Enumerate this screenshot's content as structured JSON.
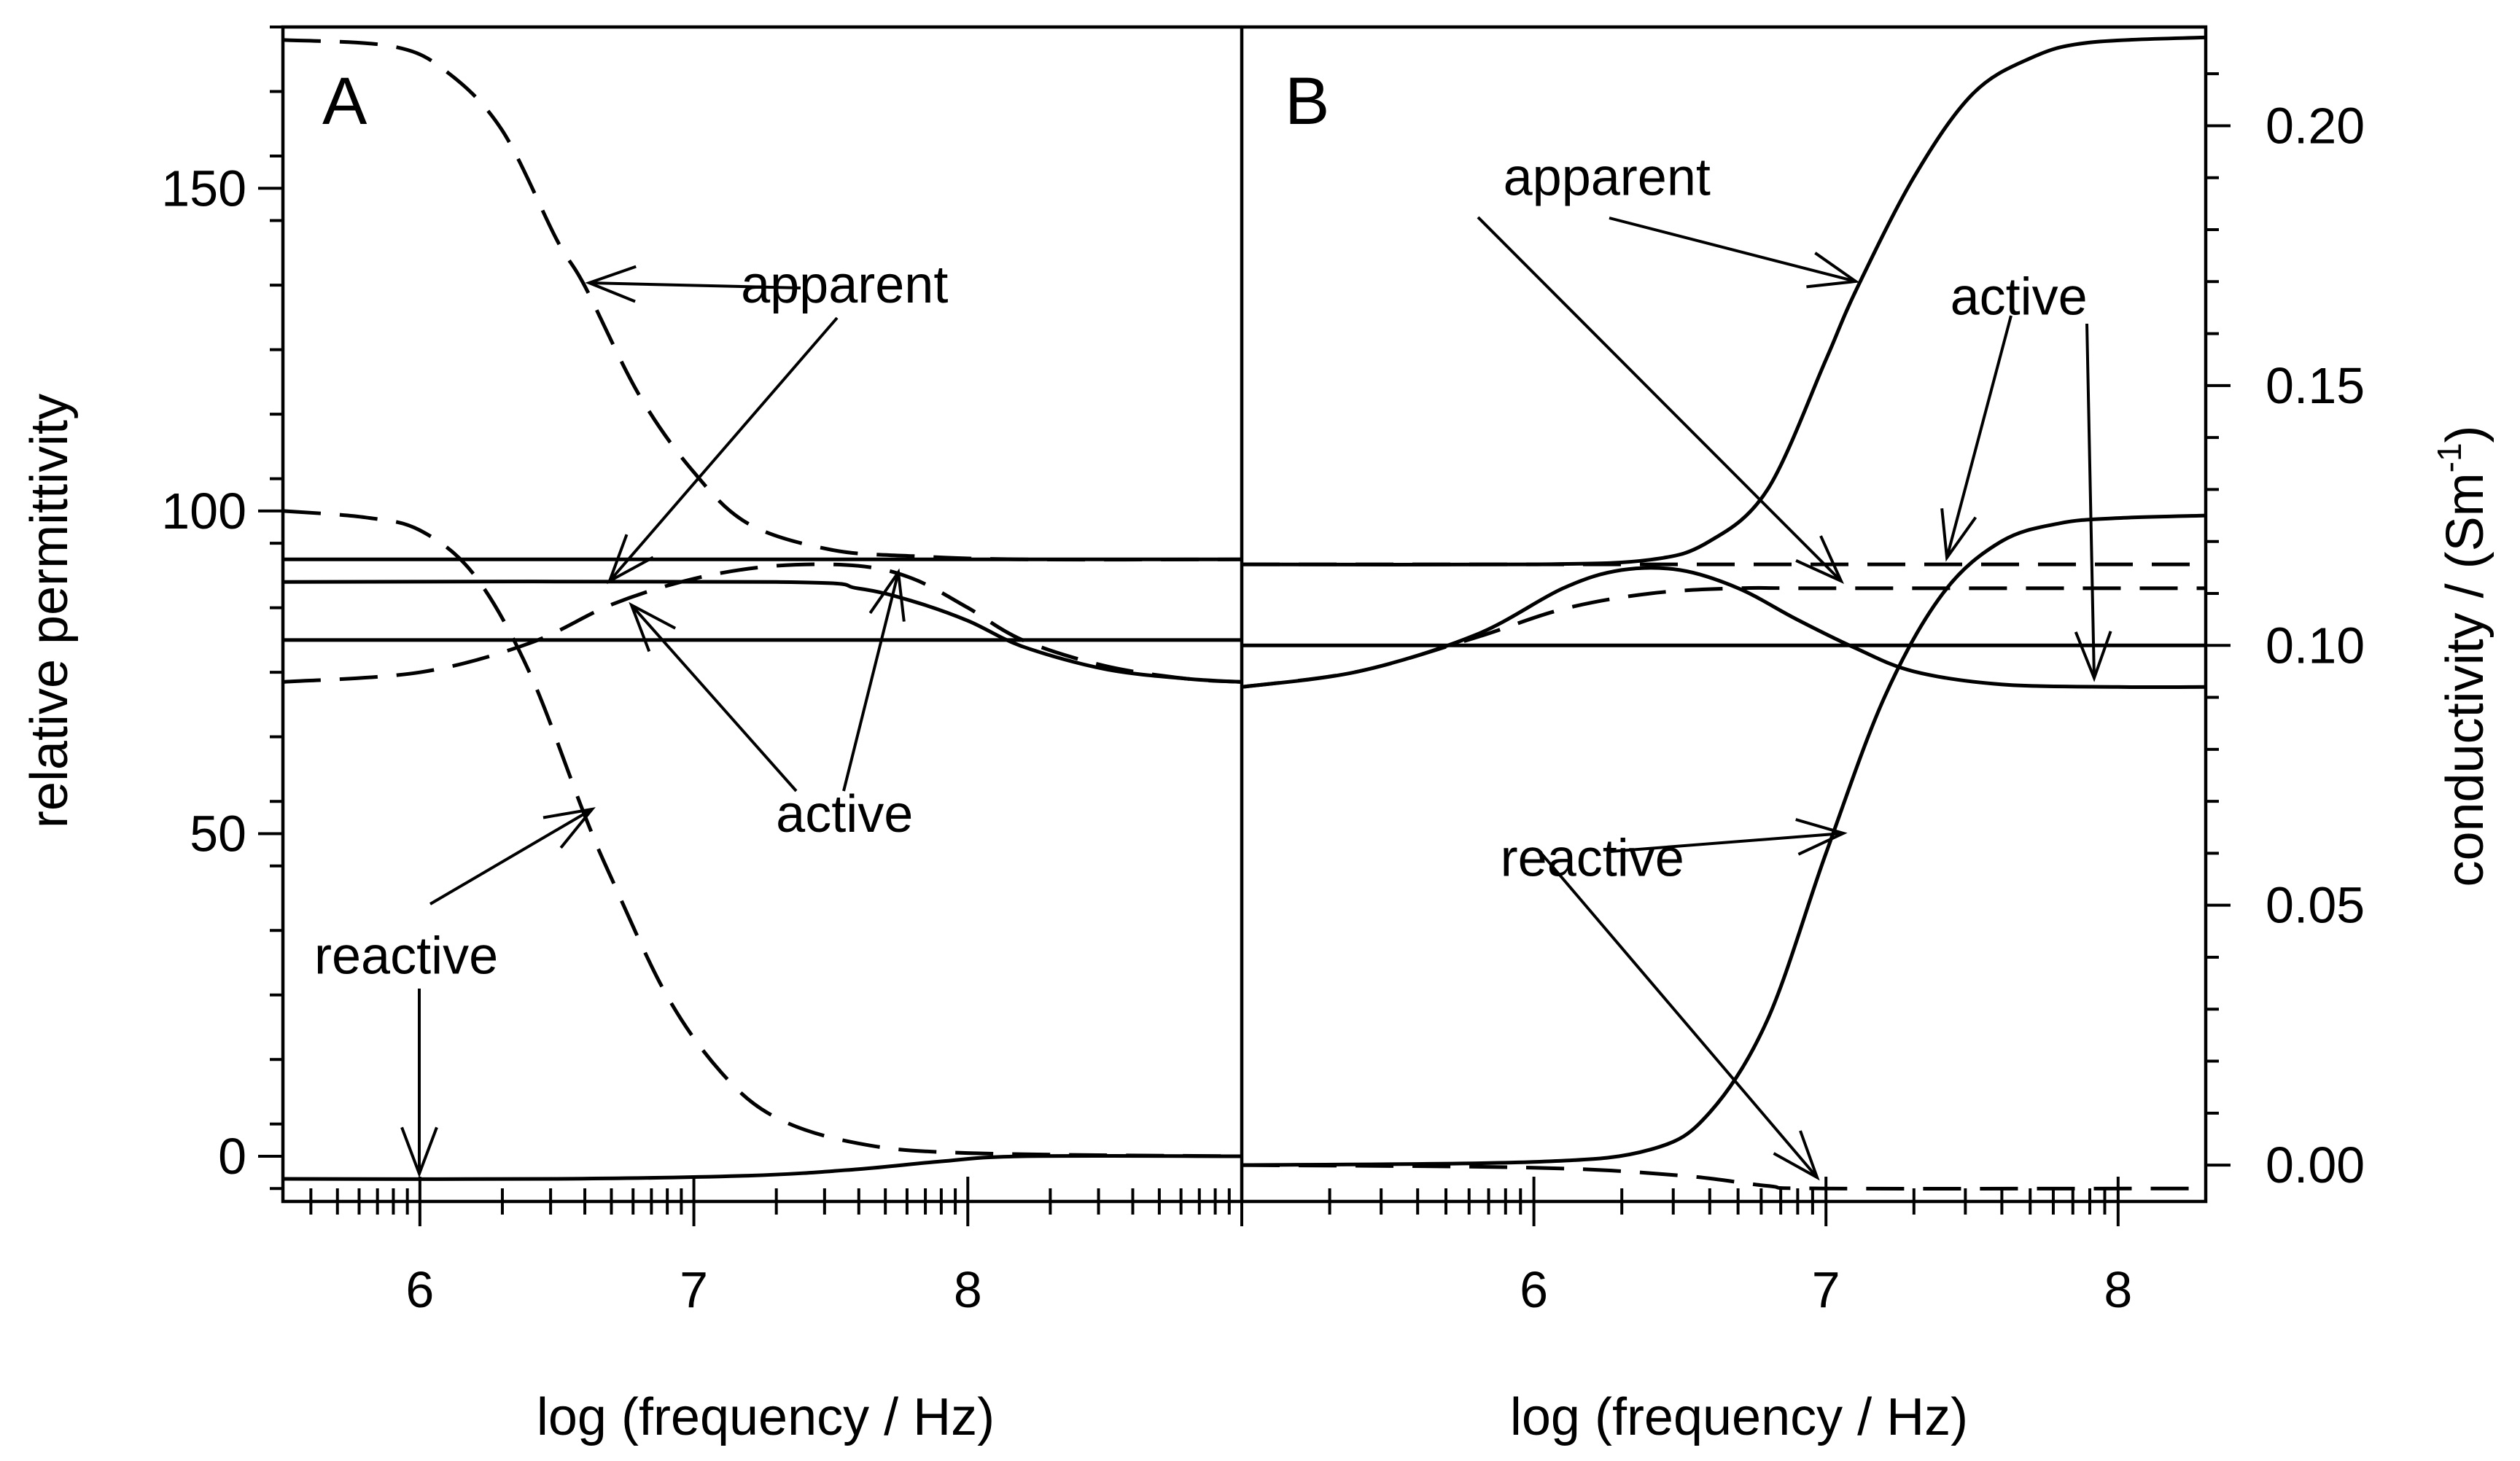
{
  "chart_data": [
    {
      "panel": "A",
      "type": "line",
      "xlabel": "log (frequency / Hz)",
      "ylabel": "relative permittivity",
      "xlim": [
        5.5,
        9.0
      ],
      "ylim": [
        -7,
        175
      ],
      "xticks": [
        6,
        7,
        8
      ],
      "yticks": [
        0,
        50,
        100,
        150
      ],
      "series": [
        {
          "name": "apparent",
          "style": "dashed",
          "points": [
            [
              5.5,
              173
            ],
            [
              5.9,
              172
            ],
            [
              6.1,
              168
            ],
            [
              6.3,
              159
            ],
            [
              6.5,
              142
            ],
            [
              6.6,
              135
            ],
            [
              6.8,
              118
            ],
            [
              7.0,
              106
            ],
            [
              7.2,
              98
            ],
            [
              7.5,
              94
            ],
            [
              7.8,
              93
            ],
            [
              8.2,
              92.5
            ],
            [
              9.0,
              92.5
            ]
          ]
        },
        {
          "name": "reactive",
          "style": "dashed",
          "points": [
            [
              5.5,
              100
            ],
            [
              5.8,
              99
            ],
            [
              6.0,
              97
            ],
            [
              6.2,
              90
            ],
            [
              6.4,
              75
            ],
            [
              6.6,
              53
            ],
            [
              6.7,
              43
            ],
            [
              6.9,
              25
            ],
            [
              7.1,
              13
            ],
            [
              7.3,
              6
            ],
            [
              7.6,
              2
            ],
            [
              8.0,
              0.5
            ],
            [
              9.0,
              0
            ]
          ]
        },
        {
          "name": "active",
          "style": "dashed",
          "points": [
            [
              5.5,
              73.5
            ],
            [
              6.0,
              75
            ],
            [
              6.4,
              79.5
            ],
            [
              6.7,
              85.5
            ],
            [
              7.0,
              89.5
            ],
            [
              7.3,
              91.5
            ],
            [
              7.6,
              91.5
            ],
            [
              7.8,
              89.5
            ],
            [
              8.0,
              85
            ],
            [
              8.2,
              80
            ],
            [
              8.5,
              76
            ],
            [
              8.8,
              74
            ],
            [
              9.0,
              73.5
            ]
          ]
        },
        {
          "name": "apparent",
          "style": "solid",
          "points": [
            [
              5.5,
              92.5
            ],
            [
              9.0,
              92.5
            ]
          ]
        },
        {
          "name": "active",
          "style": "solid",
          "points": [
            [
              5.5,
              89
            ],
            [
              7.3,
              89
            ],
            [
              7.6,
              88
            ],
            [
              7.8,
              86
            ],
            [
              8.0,
              83
            ],
            [
              8.2,
              79
            ],
            [
              8.5,
              75.5
            ],
            [
              8.8,
              74
            ],
            [
              9.0,
              73.5
            ]
          ]
        },
        {
          "name": "reactive",
          "style": "solid",
          "points": [
            [
              5.5,
              -3.5
            ],
            [
              6.5,
              -3.5
            ],
            [
              7.2,
              -3
            ],
            [
              7.6,
              -2
            ],
            [
              7.9,
              -0.8
            ],
            [
              8.2,
              0
            ],
            [
              9.0,
              0
            ]
          ]
        },
        {
          "name": "",
          "style": "solid",
          "points": [
            [
              5.5,
              80
            ],
            [
              9.0,
              80
            ]
          ]
        }
      ],
      "annotations": [
        {
          "text": "apparent",
          "x": 7.55,
          "y": 135
        },
        {
          "text": "active",
          "x": 7.55,
          "y": 53
        },
        {
          "text": "reactive",
          "x": 5.95,
          "y": 31
        }
      ]
    },
    {
      "panel": "B",
      "type": "line",
      "xlabel": "log (frequency / Hz)",
      "ylabel": "conductivity / (Sm⁻¹)",
      "xlim": [
        5.0,
        8.3
      ],
      "ylim": [
        -0.007,
        0.219
      ],
      "xticks": [
        6,
        7,
        8
      ],
      "yticks": [
        0.0,
        0.05,
        0.1,
        0.15,
        0.2
      ],
      "series": [
        {
          "name": "apparent",
          "style": "solid",
          "points": [
            [
              5.0,
              0.1156
            ],
            [
              6.0,
              0.1156
            ],
            [
              6.4,
              0.1165
            ],
            [
              6.6,
              0.12
            ],
            [
              6.8,
              0.13
            ],
            [
              7.0,
              0.155
            ],
            [
              7.1,
              0.168
            ],
            [
              7.3,
              0.19
            ],
            [
              7.5,
              0.206
            ],
            [
              7.7,
              0.213
            ],
            [
              7.9,
              0.216
            ],
            [
              8.3,
              0.217
            ]
          ]
        },
        {
          "name": "reactive",
          "style": "solid",
          "points": [
            [
              5.0,
              0.0
            ],
            [
              6.0,
              0.0006
            ],
            [
              6.4,
              0.003
            ],
            [
              6.6,
              0.01
            ],
            [
              6.8,
              0.028
            ],
            [
              7.0,
              0.06
            ],
            [
              7.2,
              0.09
            ],
            [
              7.4,
              0.11
            ],
            [
              7.6,
              0.12
            ],
            [
              7.8,
              0.1235
            ],
            [
              8.0,
              0.1245
            ],
            [
              8.3,
              0.125
            ]
          ]
        },
        {
          "name": "active",
          "style": "solid",
          "points": [
            [
              5.0,
              0.092
            ],
            [
              5.4,
              0.095
            ],
            [
              5.8,
              0.102
            ],
            [
              6.1,
              0.111
            ],
            [
              6.3,
              0.1145
            ],
            [
              6.5,
              0.1145
            ],
            [
              6.7,
              0.111
            ],
            [
              6.9,
              0.105
            ],
            [
              7.1,
              0.0995
            ],
            [
              7.3,
              0.095
            ],
            [
              7.6,
              0.0925
            ],
            [
              8.0,
              0.092
            ],
            [
              8.3,
              0.092
            ]
          ]
        },
        {
          "name": "apparent",
          "style": "dashed",
          "points": [
            [
              5.0,
              0.1156
            ],
            [
              8.3,
              0.1156
            ]
          ]
        },
        {
          "name": "active",
          "style": "dashed",
          "points": [
            [
              5.0,
              0.092
            ],
            [
              5.4,
              0.095
            ],
            [
              5.8,
              0.1015
            ],
            [
              6.1,
              0.107
            ],
            [
              6.4,
              0.11
            ],
            [
              6.7,
              0.111
            ],
            [
              7.0,
              0.111
            ],
            [
              8.3,
              0.111
            ]
          ]
        },
        {
          "name": "reactive",
          "style": "dashed",
          "points": [
            [
              5.0,
              0.0
            ],
            [
              6.0,
              -0.0005
            ],
            [
              6.5,
              -0.002
            ],
            [
              6.8,
              -0.004
            ],
            [
              7.0,
              -0.0045
            ],
            [
              8.3,
              -0.0045
            ]
          ]
        },
        {
          "name": "",
          "style": "solid",
          "points": [
            [
              5.0,
              0.1
            ],
            [
              8.3,
              0.1
            ]
          ]
        }
      ],
      "annotations": [
        {
          "text": "apparent",
          "x": 6.25,
          "y": 0.19
        },
        {
          "text": "active",
          "x": 7.66,
          "y": 0.167
        },
        {
          "text": "reactive",
          "x": 6.2,
          "y": 0.059
        }
      ]
    }
  ],
  "panel_labels": {
    "a": "A",
    "b": "B"
  },
  "axes": {
    "left_ylabel": "relative permittivity",
    "right_ylabel": "conductivity / (Sm",
    "right_ylabel_sup": "-1",
    "right_ylabel_close": ")",
    "xlabel_a": "log (frequency / Hz)",
    "xlabel_b": "log (frequency / Hz)"
  }
}
